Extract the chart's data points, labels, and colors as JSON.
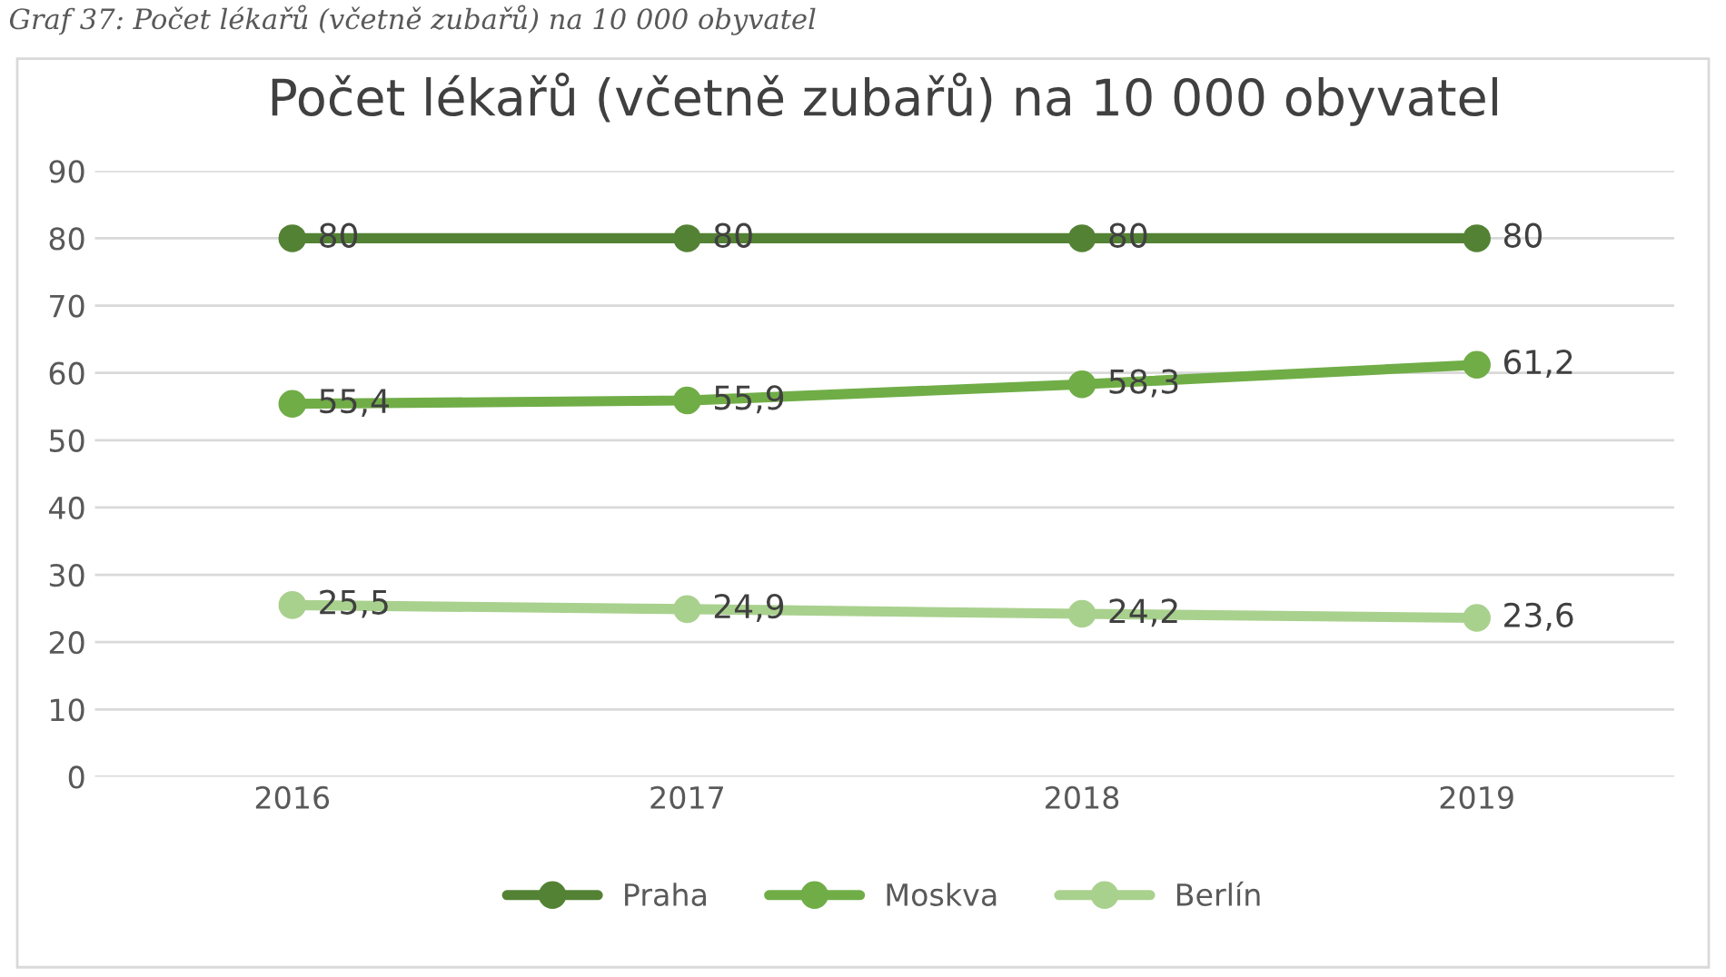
{
  "chart_data": {
    "type": "line",
    "title": "Počet lékařů (včetně zubařů) na 10 000 obyvatel",
    "annotations": [
      "Graf 37: Počet lékařů (včetně zubařů) na 10 000 obyvatel"
    ],
    "categories": [
      "2016",
      "2017",
      "2018",
      "2019"
    ],
    "series": [
      {
        "name": "Praha",
        "color": "#548235",
        "values": [
          80,
          80,
          80,
          80
        ],
        "value_labels": [
          "80",
          "80",
          "80",
          "80"
        ]
      },
      {
        "name": "Moskva",
        "color": "#70ad47",
        "values": [
          55.4,
          55.9,
          58.3,
          61.2
        ],
        "value_labels": [
          "55,4",
          "55,9",
          "58,3",
          "61,2"
        ]
      },
      {
        "name": "Berlín",
        "color": "#a9d18e",
        "values": [
          25.5,
          24.9,
          24.2,
          23.6
        ],
        "value_labels": [
          "25,5",
          "24,9",
          "24,2",
          "23,6"
        ]
      }
    ],
    "ylim": [
      0,
      90
    ],
    "yticks": [
      0,
      10,
      20,
      30,
      40,
      50,
      60,
      70,
      80,
      90
    ],
    "grid": "y",
    "legend": "bottom",
    "marker": "circle",
    "line_style": "solid"
  }
}
